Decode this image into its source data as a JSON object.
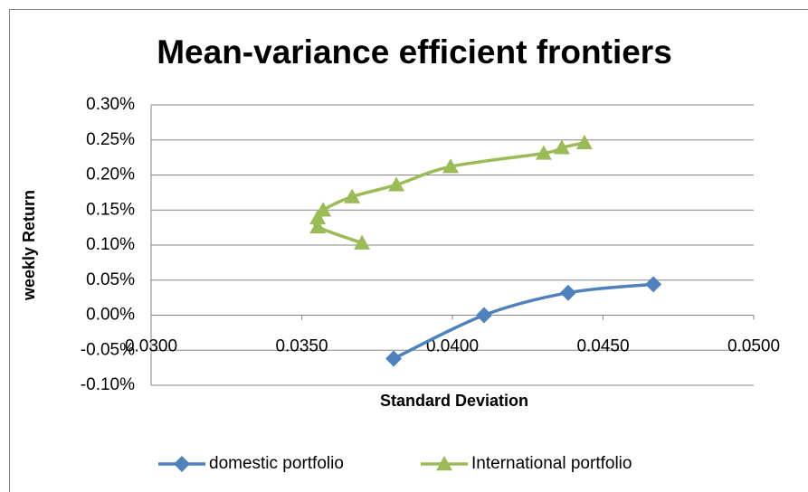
{
  "chart_data": {
    "type": "scatter",
    "title": "Mean-variance  efficient frontiers",
    "xlabel": "Standard Deviation",
    "ylabel": "weekly Return",
    "xlim": [
      0.03,
      0.05
    ],
    "xticks": [
      {
        "value": 0.03,
        "label": "0.0300"
      },
      {
        "value": 0.035,
        "label": "0.0350"
      },
      {
        "value": 0.04,
        "label": "0.0400"
      },
      {
        "value": 0.045,
        "label": "0.0450"
      },
      {
        "value": 0.05,
        "label": "0.0500"
      }
    ],
    "ylim": [
      -0.1,
      0.3
    ],
    "yticks": [
      {
        "value": -0.1,
        "label": "-0.10%"
      },
      {
        "value": -0.05,
        "label": "-0.05%"
      },
      {
        "value": 0,
        "label": "0.00%"
      },
      {
        "value": 0.05,
        "label": "0.05%"
      },
      {
        "value": 0.1,
        "label": "0.10%"
      },
      {
        "value": 0.15,
        "label": "0.15%"
      },
      {
        "value": 0.2,
        "label": "0.20%"
      },
      {
        "value": 0.25,
        "label": "0.25%"
      },
      {
        "value": 0.3,
        "label": "0.30%"
      }
    ],
    "grid": true,
    "legend": "bottom",
    "series": [
      {
        "name": "domestic portfolio",
        "color": "#4f81bd",
        "marker": "diamond",
        "x": [
          0.03805,
          0.04105,
          0.04384,
          0.04667
        ],
        "values": [
          -0.062,
          0,
          0.032,
          0.044
        ]
      },
      {
        "name": "International portfolio",
        "color": "#9bbb59",
        "marker": "triangle",
        "x": [
          0.037,
          0.03553,
          0.03553,
          0.03571,
          0.03667,
          0.03814,
          0.03994,
          0.04303,
          0.04363,
          0.04438
        ],
        "values": [
          0.103,
          0.126,
          0.139,
          0.15,
          0.169,
          0.186,
          0.212,
          0.231,
          0.239,
          0.246
        ]
      }
    ]
  }
}
